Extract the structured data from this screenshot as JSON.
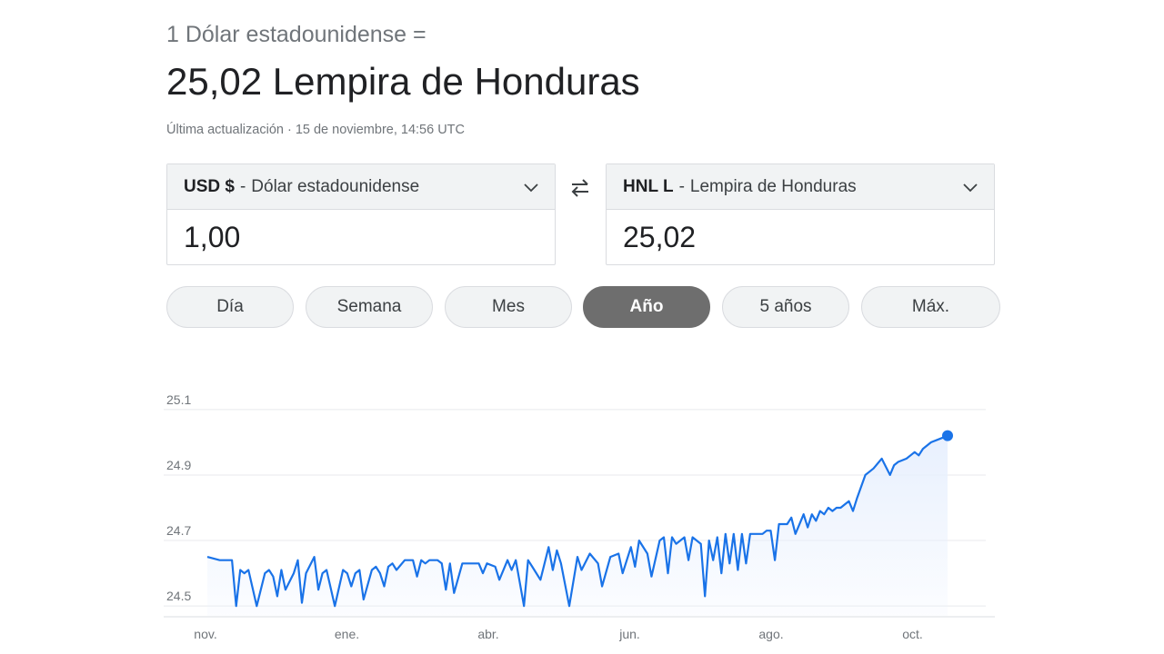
{
  "header": {
    "from_text": "1 Dólar estadounidense =",
    "result_text": "25,02 Lempira de Honduras",
    "updated_text": "Última actualización · 15 de noviembre, 14:56 UTC"
  },
  "converter": {
    "from": {
      "code": "USD $",
      "name": "Dólar estadounidense",
      "amount": "1,00"
    },
    "to": {
      "code": "HNL L",
      "name": "Lempira de Honduras",
      "amount": "25,02"
    }
  },
  "ranges": [
    {
      "label": "Día",
      "active": false
    },
    {
      "label": "Semana",
      "active": false
    },
    {
      "label": "Mes",
      "active": false
    },
    {
      "label": "Año",
      "active": true
    },
    {
      "label": "5 años",
      "active": false
    },
    {
      "label": "Máx.",
      "active": false
    }
  ],
  "colors": {
    "line": "#1a73e8",
    "fill": "#e8f0fe",
    "active_pill": "#6e6e6e"
  },
  "chart_data": {
    "type": "area",
    "y_ticks": [
      "25.1",
      "24.9",
      "24.7",
      "24.5"
    ],
    "ylim": [
      24.47,
      25.13
    ],
    "x_ticks": [
      "nov.",
      "ene.",
      "abr.",
      "jun.",
      "ago.",
      "oct."
    ],
    "grid": true,
    "series": [
      {
        "x": [
          0,
          3,
          6,
          7,
          8,
          9,
          10,
          12,
          14,
          15,
          16,
          17,
          18,
          19,
          21,
          22,
          23,
          24,
          26,
          27,
          28,
          29,
          31,
          33,
          34,
          35,
          36,
          37,
          38,
          40,
          41,
          42,
          43,
          44,
          45,
          46,
          48,
          50,
          51,
          52,
          53,
          54,
          56,
          57,
          58,
          59,
          60,
          62,
          64,
          66,
          67,
          68,
          70,
          71,
          73,
          74,
          75,
          77,
          78,
          79,
          81,
          83,
          84,
          85,
          86,
          88,
          90,
          91,
          93,
          95,
          96,
          98,
          100,
          101,
          103,
          104,
          105,
          107,
          108,
          110,
          111,
          112,
          113,
          114,
          116,
          117,
          118,
          120,
          121,
          122,
          123,
          124,
          125,
          126,
          127,
          128,
          129,
          130,
          131,
          132,
          134,
          135,
          136,
          137,
          138,
          139,
          141,
          142,
          143,
          145,
          146,
          147,
          148,
          149,
          150,
          151,
          152,
          153,
          154,
          155,
          156,
          157,
          158,
          160,
          161,
          162,
          164,
          166,
          167,
          168,
          170,
          171,
          172,
          173,
          174,
          175,
          176,
          178,
          180
        ],
        "y": [
          24.65,
          24.64,
          24.64,
          24.5,
          24.61,
          24.6,
          24.61,
          24.5,
          24.6,
          24.61,
          24.59,
          24.53,
          24.61,
          24.55,
          24.6,
          24.64,
          24.51,
          24.6,
          24.65,
          24.55,
          24.6,
          24.61,
          24.5,
          24.61,
          24.6,
          24.56,
          24.6,
          24.61,
          24.52,
          24.61,
          24.62,
          24.6,
          24.56,
          24.62,
          24.63,
          24.61,
          24.64,
          24.64,
          24.59,
          24.64,
          24.63,
          24.64,
          24.64,
          24.63,
          24.55,
          24.63,
          24.54,
          24.63,
          24.63,
          24.63,
          24.6,
          24.63,
          24.62,
          24.58,
          24.64,
          24.61,
          24.64,
          24.5,
          24.64,
          24.62,
          24.58,
          24.68,
          24.61,
          24.67,
          24.63,
          24.5,
          24.65,
          24.61,
          24.66,
          24.63,
          24.56,
          24.65,
          24.66,
          24.6,
          24.68,
          24.62,
          24.7,
          24.66,
          24.59,
          24.7,
          24.71,
          24.6,
          24.71,
          24.69,
          24.71,
          24.64,
          24.71,
          24.69,
          24.53,
          24.7,
          24.64,
          24.71,
          24.6,
          24.72,
          24.63,
          24.72,
          24.61,
          24.72,
          24.63,
          24.72,
          24.72,
          24.72,
          24.73,
          24.73,
          24.64,
          24.75,
          24.75,
          24.77,
          24.72,
          24.78,
          24.74,
          24.78,
          24.76,
          24.79,
          24.78,
          24.8,
          24.79,
          24.8,
          24.8,
          24.81,
          24.82,
          24.79,
          24.83,
          24.9,
          24.91,
          24.92,
          24.95,
          24.9,
          24.93,
          24.94,
          24.95,
          24.96,
          24.97,
          24.96,
          24.98,
          24.99,
          25.0,
          25.01,
          25.02
        ]
      }
    ]
  }
}
